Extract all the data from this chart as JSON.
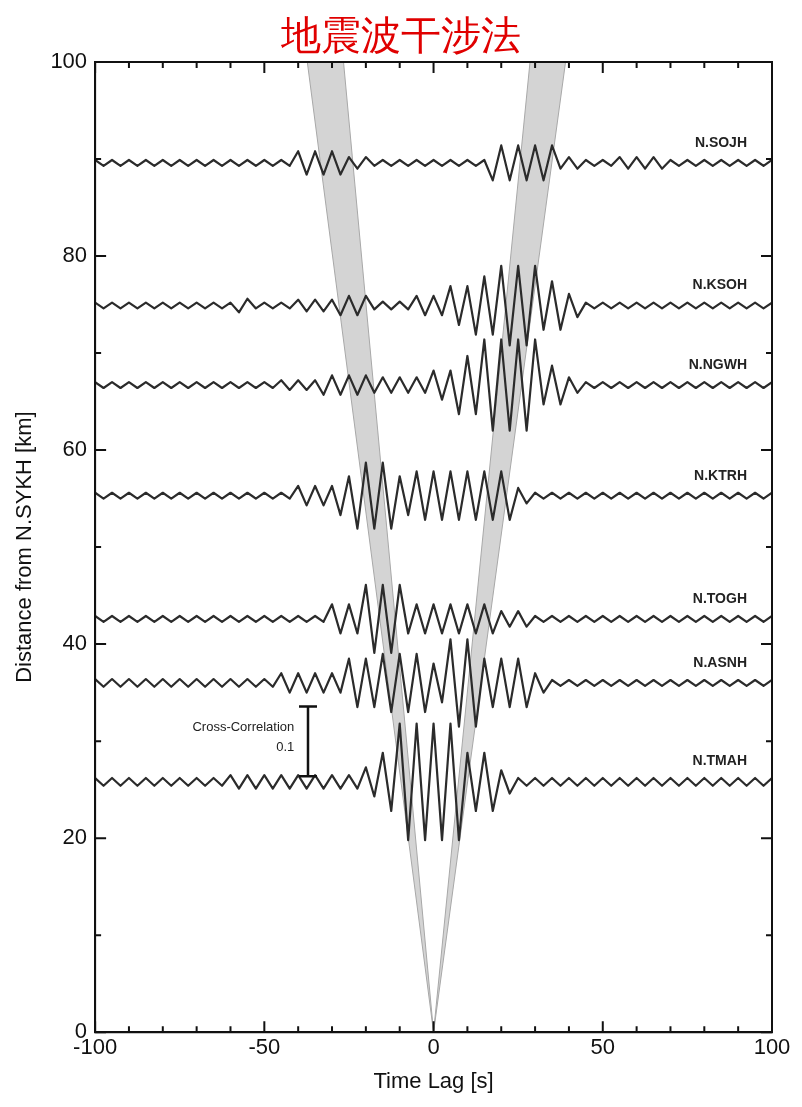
{
  "chart_data": {
    "type": "line",
    "title": "地震波干涉法",
    "xlabel": "Time Lag [s]",
    "ylabel": "Distance from N.SYKH [km]",
    "xlim": [
      -100,
      100
    ],
    "ylim": [
      0,
      100
    ],
    "xticks": [
      -100,
      {
        "value": -90,
        "label": null
      },
      {
        "value": -80,
        "label": null
      },
      {
        "value": -70,
        "label": null
      },
      {
        "value": -60,
        "label": null
      },
      -50,
      {
        "value": -40,
        "label": null
      },
      {
        "value": -30,
        "label": null
      },
      {
        "value": -20,
        "label": null
      },
      {
        "value": -10,
        "label": null
      },
      0,
      {
        "value": 10,
        "label": null
      },
      {
        "value": 20,
        "label": null
      },
      {
        "value": 30,
        "label": null
      },
      {
        "value": 40,
        "label": null
      },
      50,
      {
        "value": 60,
        "label": null
      },
      {
        "value": 70,
        "label": null
      },
      {
        "value": 80,
        "label": null
      },
      {
        "value": 90,
        "label": null
      },
      100
    ],
    "yticks": [
      0,
      {
        "value": 10,
        "label": null
      },
      20,
      {
        "value": 30,
        "label": null
      },
      40,
      {
        "value": 50,
        "label": null
      },
      60,
      {
        "value": 70,
        "label": null
      },
      80,
      {
        "value": 90,
        "label": null
      },
      100
    ],
    "grid": false,
    "legend": false,
    "marker": "none",
    "annotations": [
      "Cross-Correlation",
      "0.1"
    ],
    "x": [
      -100,
      -97.5,
      -95,
      -92.5,
      -90,
      -87.5,
      -85,
      -82.5,
      -80,
      -77.5,
      -75,
      -72.5,
      -70,
      -67.5,
      -65,
      -62.5,
      -60,
      -57.5,
      -55,
      -52.5,
      -50,
      -47.5,
      -45,
      -42.5,
      -40,
      -37.5,
      -35,
      -32.5,
      -30,
      -27.5,
      -25,
      -22.5,
      -20,
      -17.5,
      -15,
      -12.5,
      -10,
      -7.5,
      -5,
      -2.5,
      0,
      2.5,
      5,
      7.5,
      10,
      12.5,
      15,
      17.5,
      20,
      22.5,
      25,
      27.5,
      30,
      32.5,
      35,
      37.5,
      40,
      42.5,
      45,
      47.5,
      50,
      52.5,
      55,
      57.5,
      60,
      62.5,
      65,
      67.5,
      70,
      72.5,
      75,
      77.5,
      80,
      82.5,
      85,
      87.5,
      90,
      92.5,
      95,
      97.5,
      100
    ],
    "series": [
      {
        "type": "area",
        "color": "#d4d4d4",
        "x": [
          0,
          -37.3,
          -26.6,
          0
        ],
        "values": [
          0,
          100,
          100,
          0
        ]
      },
      {
        "type": "area",
        "color": "#d4d4d4",
        "x": [
          0,
          28.5,
          39,
          0
        ],
        "values": [
          0,
          100,
          100,
          0
        ]
      },
      {
        "name": "N.SOJH",
        "color": "#2b2b2b",
        "values": [
          89.9,
          89.3,
          89.9,
          89.3,
          89.9,
          89.3,
          89.9,
          89.3,
          89.9,
          89.3,
          89.9,
          89.3,
          89.9,
          89.3,
          89.9,
          89.3,
          89.9,
          89.3,
          89.9,
          89.3,
          89.9,
          89.3,
          89.9,
          89.3,
          90.8,
          88.4,
          90.8,
          88.4,
          90.8,
          88.4,
          90.2,
          89.0,
          90.2,
          89.3,
          89.9,
          89.3,
          89.9,
          89.3,
          89.9,
          89.3,
          89.9,
          89.3,
          89.9,
          89.3,
          89.9,
          89.3,
          89.9,
          87.8,
          91.4,
          87.8,
          91.4,
          87.8,
          91.4,
          87.8,
          91.4,
          89.0,
          90.2,
          89.0,
          89.9,
          89.3,
          89.9,
          89.3,
          90.2,
          89.0,
          90.2,
          89.0,
          90.2,
          89.0,
          89.9,
          89.3,
          89.9,
          89.3,
          89.9,
          89.3,
          89.9,
          89.3,
          89.9,
          89.3,
          89.9,
          89.3,
          89.9
        ]
      },
      {
        "name": "N.KSOH",
        "color": "#2b2b2b",
        "values": [
          75.2,
          74.6,
          75.2,
          74.6,
          75.2,
          74.6,
          75.2,
          74.6,
          75.2,
          74.6,
          75.2,
          74.6,
          75.2,
          74.6,
          75.2,
          74.6,
          75.2,
          74.2,
          75.6,
          74.6,
          75.2,
          74.6,
          75.2,
          74.6,
          75.5,
          74.3,
          75.5,
          74.3,
          75.5,
          73.9,
          75.9,
          73.9,
          75.9,
          74.5,
          75.3,
          74.5,
          75.3,
          74.5,
          75.9,
          73.9,
          75.9,
          73.9,
          76.9,
          72.9,
          76.9,
          71.9,
          77.9,
          71.9,
          79.0,
          70.8,
          79.0,
          70.8,
          79.0,
          72.4,
          77.4,
          72.4,
          76.1,
          73.7,
          75.2,
          74.6,
          75.2,
          74.6,
          75.2,
          74.6,
          75.2,
          74.6,
          75.2,
          74.6,
          75.2,
          74.6,
          75.2,
          74.6,
          75.2,
          74.6,
          75.2,
          74.6,
          75.2,
          74.6,
          75.2,
          74.6,
          75.2
        ]
      },
      {
        "name": "N.NGWH",
        "color": "#2b2b2b",
        "values": [
          67.0,
          66.4,
          67.0,
          66.4,
          67.0,
          66.4,
          67.0,
          66.4,
          67.0,
          66.4,
          67.0,
          66.4,
          67.0,
          66.4,
          67.0,
          66.4,
          67.0,
          66.4,
          67.0,
          66.4,
          67.0,
          66.4,
          67.2,
          66.2,
          67.2,
          66.2,
          67.2,
          65.7,
          67.7,
          65.7,
          67.7,
          65.7,
          67.7,
          65.9,
          67.5,
          65.9,
          67.5,
          65.9,
          67.5,
          65.9,
          68.2,
          65.2,
          68.2,
          63.7,
          69.7,
          63.7,
          71.4,
          62.0,
          71.4,
          62.0,
          71.4,
          62.0,
          71.4,
          64.7,
          68.7,
          64.7,
          67.5,
          65.9,
          67.0,
          66.4,
          67.0,
          66.4,
          67.0,
          66.4,
          67.0,
          66.4,
          67.0,
          66.4,
          67.0,
          66.4,
          67.0,
          66.4,
          67.0,
          66.4,
          67.0,
          66.4,
          67.0,
          66.4,
          67.0,
          66.4,
          67.0
        ]
      },
      {
        "name": "N.KTRH",
        "color": "#2b2b2b",
        "values": [
          55.6,
          55.0,
          55.6,
          55.0,
          55.6,
          55.0,
          55.6,
          55.0,
          55.6,
          55.0,
          55.6,
          55.0,
          55.6,
          55.0,
          55.6,
          55.0,
          55.6,
          55.0,
          55.6,
          55.0,
          55.6,
          55.0,
          55.6,
          55.0,
          56.3,
          54.3,
          56.3,
          54.3,
          56.3,
          53.3,
          57.3,
          51.9,
          58.7,
          51.9,
          58.7,
          51.9,
          57.3,
          53.3,
          57.8,
          52.8,
          57.8,
          52.8,
          57.8,
          52.8,
          57.8,
          52.8,
          57.8,
          52.8,
          57.8,
          52.8,
          56.1,
          54.5,
          55.6,
          55.0,
          55.6,
          55.0,
          55.6,
          55.0,
          55.6,
          55.0,
          55.6,
          55.0,
          55.6,
          55.0,
          55.6,
          55.0,
          55.6,
          55.0,
          55.6,
          55.0,
          55.6,
          55.0,
          55.6,
          55.0,
          55.6,
          55.0,
          55.6,
          55.0,
          55.6,
          55.0,
          55.6
        ]
      },
      {
        "name": "N.TOGH",
        "color": "#2b2b2b",
        "values": [
          42.9,
          42.3,
          42.9,
          42.3,
          42.9,
          42.3,
          42.9,
          42.3,
          42.9,
          42.3,
          42.9,
          42.3,
          42.9,
          42.3,
          42.9,
          42.3,
          42.9,
          42.3,
          42.9,
          42.3,
          42.9,
          42.3,
          42.9,
          42.3,
          42.9,
          42.3,
          42.9,
          42.3,
          44.1,
          41.1,
          44.1,
          41.1,
          46.1,
          39.1,
          46.1,
          39.1,
          46.1,
          41.1,
          44.1,
          41.1,
          44.1,
          41.1,
          44.1,
          41.1,
          44.1,
          41.1,
          44.1,
          41.1,
          43.4,
          41.8,
          43.4,
          41.8,
          42.9,
          42.3,
          42.9,
          42.3,
          42.9,
          42.3,
          42.9,
          42.3,
          42.9,
          42.3,
          42.9,
          42.3,
          42.9,
          42.3,
          42.9,
          42.3,
          42.9,
          42.3,
          42.9,
          42.3,
          42.9,
          42.3,
          42.9,
          42.3,
          42.9,
          42.3,
          42.9,
          42.3,
          42.9
        ]
      },
      {
        "name": "N.ASNH",
        "color": "#2b2b2b",
        "values": [
          36.4,
          35.6,
          36.4,
          35.6,
          36.4,
          35.6,
          36.4,
          35.6,
          36.4,
          35.6,
          36.4,
          35.6,
          36.4,
          35.6,
          36.4,
          35.6,
          36.4,
          35.6,
          36.4,
          35.6,
          36.4,
          35.6,
          37.0,
          35.0,
          37.0,
          35.0,
          37.0,
          35.0,
          37.0,
          35.0,
          38.5,
          33.5,
          38.5,
          33.5,
          39.0,
          33.0,
          39.0,
          33.0,
          39.0,
          33.0,
          38.0,
          34.0,
          40.5,
          31.5,
          40.5,
          31.5,
          38.5,
          33.5,
          38.5,
          33.5,
          38.5,
          33.5,
          37.0,
          35.0,
          36.3,
          35.7,
          36.3,
          35.7,
          36.3,
          35.7,
          36.3,
          35.7,
          36.3,
          35.7,
          36.3,
          35.7,
          36.3,
          35.7,
          36.3,
          35.7,
          36.3,
          35.7,
          36.3,
          35.7,
          36.3,
          35.7,
          36.3,
          35.7,
          36.3,
          35.7,
          36.3
        ]
      },
      {
        "name": "N.TMAH",
        "color": "#2b2b2b",
        "values": [
          26.2,
          25.4,
          26.2,
          25.4,
          26.2,
          25.4,
          26.2,
          25.4,
          26.2,
          25.4,
          26.2,
          25.4,
          26.2,
          25.4,
          26.2,
          25.4,
          26.5,
          25.1,
          26.5,
          25.1,
          26.5,
          25.1,
          26.5,
          25.1,
          26.5,
          25.1,
          26.5,
          25.1,
          26.5,
          25.1,
          26.5,
          25.1,
          27.3,
          24.3,
          28.8,
          22.8,
          31.8,
          19.8,
          31.8,
          19.8,
          31.8,
          19.8,
          31.8,
          19.8,
          28.8,
          22.8,
          28.8,
          22.8,
          27.0,
          24.6,
          26.2,
          25.4,
          26.2,
          25.4,
          26.2,
          25.4,
          26.2,
          25.4,
          26.2,
          25.4,
          26.2,
          25.4,
          26.2,
          25.4,
          26.2,
          25.4,
          26.2,
          25.4,
          26.2,
          25.4,
          26.2,
          25.4,
          26.2,
          25.4,
          26.2,
          25.4,
          26.2,
          25.4,
          26.2,
          25.4,
          26.2
        ]
      }
    ]
  }
}
